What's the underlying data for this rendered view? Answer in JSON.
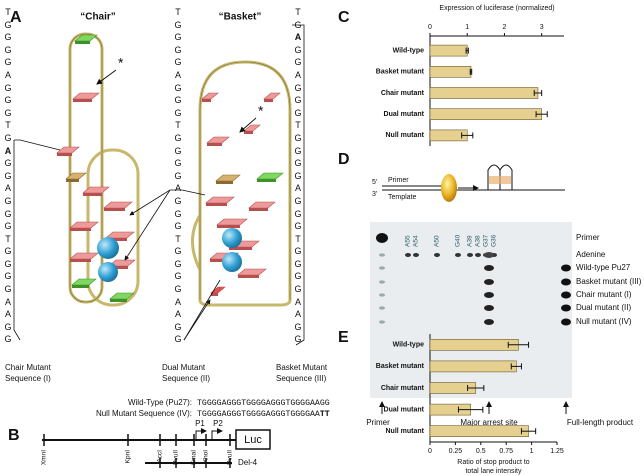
{
  "panels": {
    "a": "A",
    "b": "B",
    "c": "C",
    "d": "D",
    "e": "E"
  },
  "panel_a": {
    "chair_title": "“Chair”",
    "basket_title": "“Basket”",
    "stars": [
      "*",
      "*"
    ],
    "chair_sequence": [
      "TGGGGAGGGTG",
      "A",
      "GGAGGGTGGGGAAGG"
    ],
    "dual_sequence": "TGGGGAGGGTGGGGAGGGTGGGGAAGG",
    "basket_sequence": [
      "TG",
      "A",
      "GGAGGGTGGGGAGGGTGGGGAAGG"
    ],
    "chair_label": [
      "Chair Mutant",
      "Sequence (I)"
    ],
    "dual_label": [
      "Dual Mutant",
      "Sequence (II)"
    ],
    "basket_label": [
      "Basket Mutant",
      "Sequence (III)"
    ],
    "wild_type_label": "Wild-Type (Pu27):",
    "wild_type_sequence": "TGGGGAGGGTGGGGAGGGTGGGGAAGG",
    "null_label": "Null Mutant Sequence (IV):",
    "null_sequence": [
      "TGGGGAGGGTGGGGAGGGTGGGGAA",
      "TT"
    ]
  },
  "panel_b": {
    "sites": [
      "XmnI",
      "KpnI",
      "AccI",
      "PvuII",
      "SmaI",
      "XhoI",
      "PvuII"
    ],
    "promoters": [
      "P1",
      "P2"
    ],
    "reporter": "Luc",
    "deletion": "Del-4"
  },
  "panel_d": {
    "strand_ends": [
      "5'",
      "3'"
    ],
    "primer": "Primer",
    "template": "Template",
    "lane_marks": [
      "A55",
      "A54",
      "A50",
      "G40",
      "A39",
      "A38",
      "G37",
      "G36"
    ],
    "rows": [
      "Primer",
      "Adenine",
      "Wild-type Pu27",
      "Basket mutant (III)",
      "Chair mutant (I)",
      "Dual mutant (II)",
      "Null mutant (IV)"
    ],
    "bottom_labels": [
      "Primer",
      "Major arrest site",
      "Full-length product"
    ]
  },
  "chart_data": [
    {
      "type": "hbar",
      "xlabel": "Expression of luciferase (normalized)",
      "xaxis_position": "top",
      "categories": [
        "Wild-type",
        "Basket mutant",
        "Chair mutant",
        "Dual mutant",
        "Null mutant"
      ],
      "values": [
        1.0,
        1.1,
        2.9,
        3.0,
        1.0
      ],
      "errors": [
        0.03,
        0.02,
        0.1,
        0.15,
        0.15
      ],
      "color": "#e6d08f",
      "xlim": [
        0,
        3.6
      ],
      "xticks": [
        0,
        1,
        2,
        3
      ]
    },
    {
      "type": "hbar",
      "xlabel": [
        "Ratio of stop product to",
        "total lane intensity"
      ],
      "xaxis_position": "bottom",
      "categories": [
        "Wild-type",
        "Basket mutant",
        "Chair mutant",
        "Dual mutant",
        "Null mutant"
      ],
      "values": [
        0.87,
        0.85,
        0.45,
        0.4,
        0.97
      ],
      "errors": [
        0.1,
        0.05,
        0.08,
        0.12,
        0.07
      ],
      "color": "#e6d08f",
      "xlim": [
        0,
        1.25
      ],
      "xticks": [
        0,
        0.25,
        0.5,
        0.75,
        1,
        1.25
      ]
    }
  ]
}
